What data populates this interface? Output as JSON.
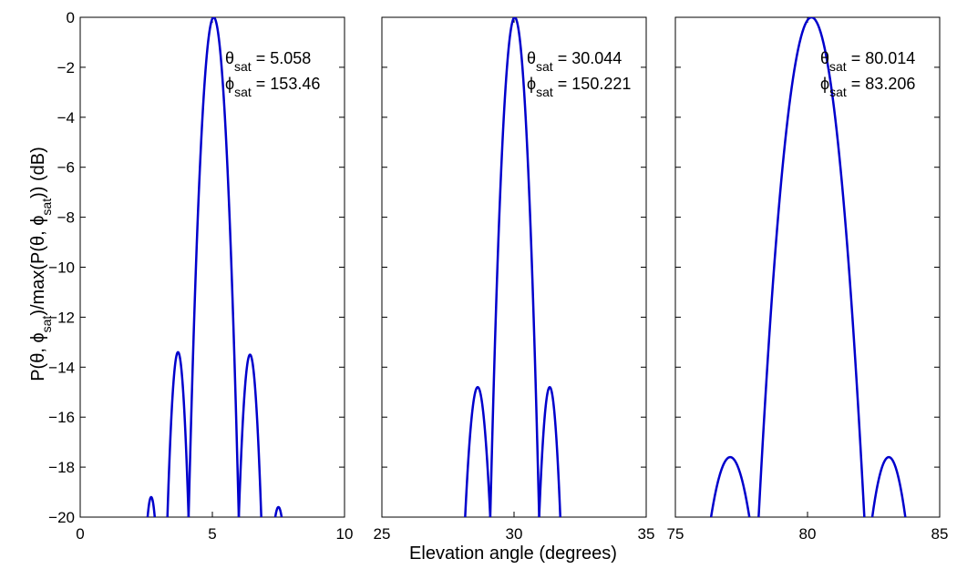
{
  "figure": {
    "xlabel": "Elevation angle (degrees)",
    "ylabel_parts": {
      "p1": "P(θ, ϕ",
      "s1": "sat",
      "p2": ")/max(P(θ, ϕ",
      "s2": "sat",
      "p3": ")) (dB)"
    }
  },
  "chart_data": [
    {
      "type": "line",
      "xlim": [
        0,
        10
      ],
      "ylim": [
        -20,
        0
      ],
      "xticks": [
        "0",
        "5",
        "10"
      ],
      "yticks": [
        "0",
        "−2",
        "−4",
        "−6",
        "−8",
        "−10",
        "−12",
        "−14",
        "−16",
        "−18",
        "−20"
      ],
      "annotation": {
        "theta_sym": "θ",
        "theta_sub": "sat",
        "theta_val": "= 5.058",
        "phi_sym": "ϕ",
        "phi_sub": "sat",
        "phi_val": "= 153.46"
      },
      "lobes": [
        {
          "start": 2.55,
          "end": 2.82,
          "peak": -19.2
        },
        {
          "start": 3.3,
          "end": 4.1,
          "peak": -13.4
        },
        {
          "start": 4.1,
          "end": 6.0,
          "peak": 0
        },
        {
          "start": 6.0,
          "end": 6.85,
          "peak": -13.5
        },
        {
          "start": 7.38,
          "end": 7.62,
          "peak": -19.6
        }
      ],
      "color": "#0000cc"
    },
    {
      "type": "line",
      "xlim": [
        25,
        35
      ],
      "ylim": [
        -20,
        0
      ],
      "xticks": [
        "25",
        "30",
        "35"
      ],
      "yticks": [],
      "annotation": {
        "theta_sym": "θ",
        "theta_sub": "sat",
        "theta_val": "= 30.044",
        "phi_sym": "ϕ",
        "phi_sub": "sat",
        "phi_val": "= 150.221"
      },
      "lobes": [
        {
          "start": 28.15,
          "end": 29.1,
          "peak": -14.8
        },
        {
          "start": 29.1,
          "end": 30.95,
          "peak": 0
        },
        {
          "start": 30.95,
          "end": 31.75,
          "peak": -14.8
        }
      ],
      "color": "#0000cc"
    },
    {
      "type": "line",
      "xlim": [
        75,
        85
      ],
      "ylim": [
        -20,
        0
      ],
      "xticks": [
        "75",
        "80",
        "85"
      ],
      "yticks": [],
      "annotation": {
        "theta_sym": "θ",
        "theta_sub": "sat",
        "theta_val": "= 80.014",
        "phi_sym": "ϕ",
        "phi_sub": "sat",
        "phi_val": "= 83.206"
      },
      "lobes": [
        {
          "start": 76.35,
          "end": 77.8,
          "peak": -17.6
        },
        {
          "start": 78.15,
          "end": 82.15,
          "peak": 0
        },
        {
          "start": 82.45,
          "end": 83.7,
          "peak": -17.6
        }
      ],
      "color": "#0000cc"
    }
  ]
}
